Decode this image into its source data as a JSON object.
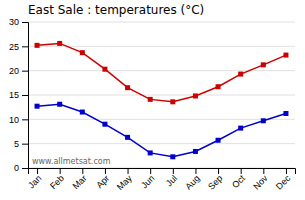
{
  "chart_data": {
    "type": "line",
    "title": "East Sale : temperatures (°C)",
    "categories": [
      "Jan",
      "Feb",
      "Mar",
      "Apr",
      "May",
      "Jun",
      "Jul",
      "Aug",
      "Sep",
      "Oct",
      "Nov",
      "Dec"
    ],
    "series": [
      {
        "color": "#cc0000",
        "marker": "square",
        "values": [
          25.2,
          25.6,
          23.7,
          20.3,
          16.5,
          14.1,
          13.6,
          14.8,
          16.7,
          19.3,
          21.2,
          23.2
        ]
      },
      {
        "color": "#0000cc",
        "marker": "square",
        "values": [
          12.7,
          13.1,
          11.5,
          9.0,
          6.3,
          3.1,
          2.3,
          3.4,
          5.7,
          8.2,
          9.7,
          11.2
        ]
      }
    ],
    "ylim": [
      0,
      30
    ],
    "yticks": [
      0,
      5,
      10,
      15,
      20,
      25,
      30
    ],
    "grid": true,
    "annotations": [
      "www.allmetsat.com"
    ]
  }
}
